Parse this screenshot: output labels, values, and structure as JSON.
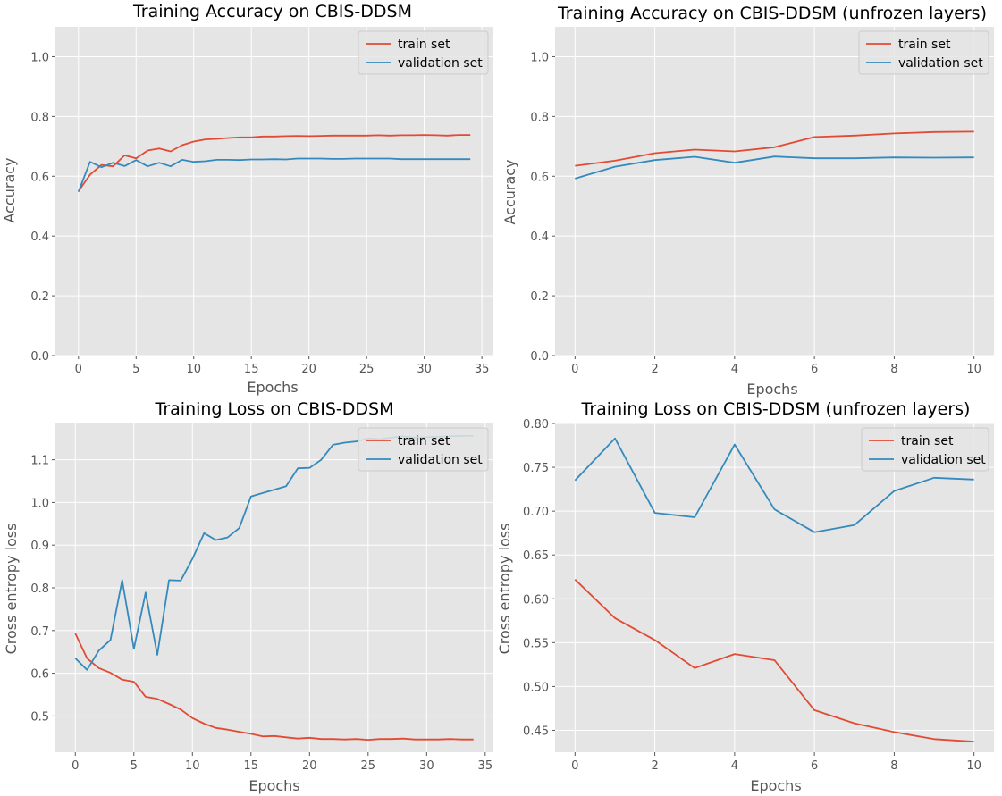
{
  "chart_data": [
    {
      "type": "line",
      "title": "Training Accuracy on CBIS-DDSM",
      "xlabel": "Epochs",
      "ylabel": "Accuracy",
      "xlim": [
        -2,
        36
      ],
      "ylim": [
        0,
        1.1
      ],
      "xticks": [
        0,
        5,
        10,
        15,
        20,
        25,
        30,
        35
      ],
      "yticks": [
        0.0,
        0.2,
        0.4,
        0.6,
        0.8,
        1.0
      ],
      "ytick_decimals": 1,
      "grid": true,
      "legend": "upper right",
      "x": [
        0,
        1,
        2,
        3,
        4,
        5,
        6,
        7,
        8,
        9,
        10,
        11,
        12,
        13,
        14,
        15,
        16,
        17,
        18,
        19,
        20,
        21,
        22,
        23,
        24,
        25,
        26,
        27,
        28,
        29,
        30,
        31,
        32,
        33,
        34
      ],
      "series": [
        {
          "name": "train set",
          "color": "#E24A33",
          "values": [
            0.55,
            0.605,
            0.638,
            0.633,
            0.67,
            0.66,
            0.686,
            0.693,
            0.683,
            0.704,
            0.716,
            0.723,
            0.725,
            0.728,
            0.73,
            0.73,
            0.733,
            0.733,
            0.734,
            0.735,
            0.734,
            0.735,
            0.736,
            0.736,
            0.736,
            0.736,
            0.737,
            0.736,
            0.737,
            0.737,
            0.738,
            0.737,
            0.736,
            0.738,
            0.738
          ]
        },
        {
          "name": "validation set",
          "color": "#348ABD",
          "values": [
            0.548,
            0.648,
            0.63,
            0.645,
            0.634,
            0.654,
            0.633,
            0.645,
            0.633,
            0.655,
            0.648,
            0.65,
            0.655,
            0.655,
            0.654,
            0.656,
            0.656,
            0.657,
            0.656,
            0.659,
            0.659,
            0.659,
            0.658,
            0.658,
            0.659,
            0.659,
            0.659,
            0.659,
            0.657,
            0.657,
            0.657,
            0.657,
            0.657,
            0.657,
            0.657
          ]
        }
      ]
    },
    {
      "type": "line",
      "title": "Training Accuracy on CBIS-DDSM (unfrozen layers)",
      "xlabel": "Epochs",
      "ylabel": "Accuracy",
      "xlim": [
        -0.5,
        10.5
      ],
      "ylim": [
        0,
        1.1
      ],
      "xticks": [
        0,
        2,
        4,
        6,
        8,
        10
      ],
      "yticks": [
        0.0,
        0.2,
        0.4,
        0.6,
        0.8,
        1.0
      ],
      "ytick_decimals": 1,
      "grid": true,
      "legend": "upper right",
      "x": [
        0,
        1,
        2,
        3,
        4,
        5,
        6,
        7,
        8,
        9,
        10
      ],
      "series": [
        {
          "name": "train set",
          "color": "#E24A33",
          "values": [
            0.635,
            0.652,
            0.677,
            0.689,
            0.683,
            0.697,
            0.731,
            0.736,
            0.743,
            0.748,
            0.749
          ]
        },
        {
          "name": "validation set",
          "color": "#348ABD",
          "values": [
            0.592,
            0.632,
            0.654,
            0.665,
            0.645,
            0.666,
            0.66,
            0.66,
            0.663,
            0.662,
            0.663
          ]
        }
      ]
    },
    {
      "type": "line",
      "title": "Training Loss on CBIS-DDSM",
      "xlabel": "Epochs",
      "ylabel": "Cross entropy loss",
      "xlim": [
        -1.7,
        35.7
      ],
      "ylim": [
        0.415,
        1.185
      ],
      "xticks": [
        0,
        5,
        10,
        15,
        20,
        25,
        30,
        35
      ],
      "yticks": [
        0.5,
        0.6,
        0.7,
        0.8,
        0.9,
        1.0,
        1.1
      ],
      "ytick_decimals": 1,
      "grid": true,
      "legend": "upper right",
      "x": [
        0,
        1,
        2,
        3,
        4,
        5,
        6,
        7,
        8,
        9,
        10,
        11,
        12,
        13,
        14,
        15,
        16,
        17,
        18,
        19,
        20,
        21,
        22,
        23,
        24,
        25,
        26,
        27,
        28,
        29,
        30,
        31,
        32,
        33,
        34
      ],
      "series": [
        {
          "name": "train set",
          "color": "#E24A33",
          "values": [
            0.693,
            0.635,
            0.612,
            0.601,
            0.585,
            0.58,
            0.545,
            0.54,
            0.528,
            0.515,
            0.495,
            0.482,
            0.472,
            0.468,
            0.463,
            0.458,
            0.452,
            0.453,
            0.45,
            0.447,
            0.449,
            0.446,
            0.446,
            0.445,
            0.446,
            0.444,
            0.446,
            0.446,
            0.447,
            0.445,
            0.445,
            0.445,
            0.446,
            0.445,
            0.445
          ]
        },
        {
          "name": "validation set",
          "color": "#348ABD",
          "values": [
            0.635,
            0.608,
            0.653,
            0.678,
            0.818,
            0.657,
            0.789,
            0.643,
            0.818,
            0.817,
            0.868,
            0.928,
            0.912,
            0.918,
            0.94,
            1.014,
            1.022,
            1.03,
            1.038,
            1.08,
            1.081,
            1.1,
            1.135,
            1.14,
            1.143,
            1.15,
            1.148,
            1.152,
            1.155,
            1.152,
            1.153,
            1.154,
            1.155,
            1.156,
            1.156
          ]
        }
      ]
    },
    {
      "type": "line",
      "title": "Training Loss on CBIS-DDSM (unfrozen layers)",
      "xlabel": "Epochs",
      "ylabel": "Cross entropy loss",
      "xlim": [
        -0.5,
        10.5
      ],
      "ylim": [
        0.425,
        0.8
      ],
      "xticks": [
        0,
        2,
        4,
        6,
        8,
        10
      ],
      "yticks": [
        0.45,
        0.5,
        0.55,
        0.6,
        0.65,
        0.7,
        0.75,
        0.8
      ],
      "ytick_decimals": 2,
      "grid": true,
      "legend": "upper right",
      "x": [
        0,
        1,
        2,
        3,
        4,
        5,
        6,
        7,
        8,
        9,
        10
      ],
      "series": [
        {
          "name": "train set",
          "color": "#E24A33",
          "values": [
            0.622,
            0.578,
            0.553,
            0.521,
            0.537,
            0.53,
            0.473,
            0.458,
            0.448,
            0.44,
            0.437
          ]
        },
        {
          "name": "validation set",
          "color": "#348ABD",
          "values": [
            0.735,
            0.783,
            0.698,
            0.693,
            0.776,
            0.702,
            0.676,
            0.684,
            0.723,
            0.738,
            0.736
          ]
        }
      ]
    }
  ]
}
